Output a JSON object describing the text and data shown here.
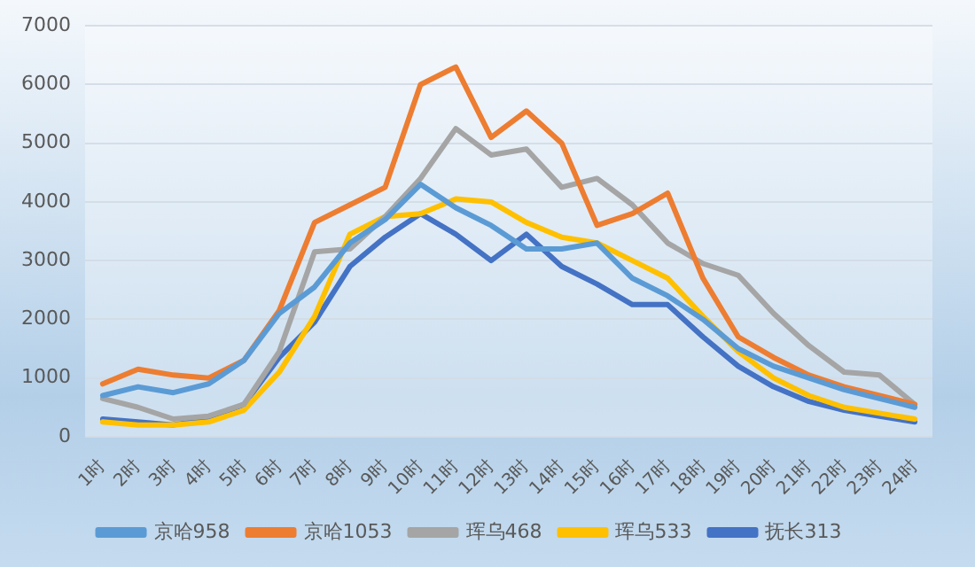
{
  "chart_data": {
    "type": "line",
    "categories": [
      "1时",
      "2时",
      "3时",
      "4时",
      "5时",
      "6时",
      "7时",
      "8时",
      "9时",
      "10时",
      "11时",
      "12时",
      "13时",
      "14时",
      "15时",
      "16时",
      "17时",
      "18时",
      "19时",
      "20时",
      "21时",
      "22时",
      "23时",
      "24时"
    ],
    "series": [
      {
        "name": "京哈958",
        "color": "#5b9bd5",
        "values": [
          700,
          850,
          750,
          900,
          1300,
          2100,
          2550,
          3300,
          3700,
          4300,
          3900,
          3600,
          3200,
          3200,
          3300,
          2700,
          2400,
          2000,
          1500,
          1200,
          1000,
          800,
          650,
          500
        ]
      },
      {
        "name": "京哈1053",
        "color": "#ed7d31",
        "values": [
          900,
          1150,
          1050,
          1000,
          1300,
          2150,
          3650,
          3950,
          4250,
          6000,
          6300,
          5100,
          5550,
          5000,
          3600,
          3800,
          4150,
          2700,
          1700,
          1350,
          1050,
          850,
          700,
          550
        ]
      },
      {
        "name": "珲乌468",
        "color": "#a5a5a5",
        "values": [
          650,
          500,
          300,
          350,
          550,
          1450,
          3150,
          3200,
          3750,
          4400,
          5250,
          4800,
          4900,
          4250,
          4400,
          3950,
          3300,
          2950,
          2750,
          2100,
          1550,
          1100,
          1050,
          550
        ]
      },
      {
        "name": "珲乌533",
        "color": "#ffc000",
        "values": [
          250,
          200,
          200,
          250,
          450,
          1100,
          2050,
          3450,
          3750,
          3800,
          4050,
          4000,
          3650,
          3400,
          3300,
          3000,
          2700,
          2050,
          1450,
          1000,
          700,
          500,
          400,
          300
        ]
      },
      {
        "name": "抚长313",
        "color": "#4472c4",
        "values": [
          300,
          250,
          200,
          300,
          550,
          1350,
          1950,
          2900,
          3400,
          3800,
          3450,
          3000,
          3450,
          2900,
          2600,
          2250,
          2250,
          1700,
          1200,
          850,
          600,
          450,
          350,
          250
        ]
      }
    ],
    "ylim": [
      0,
      7000
    ],
    "yticks": [
      0,
      1000,
      2000,
      3000,
      4000,
      5000,
      6000,
      7000
    ],
    "grid": "y",
    "legend": "bottom",
    "marker": "none",
    "line_style": "solid"
  }
}
